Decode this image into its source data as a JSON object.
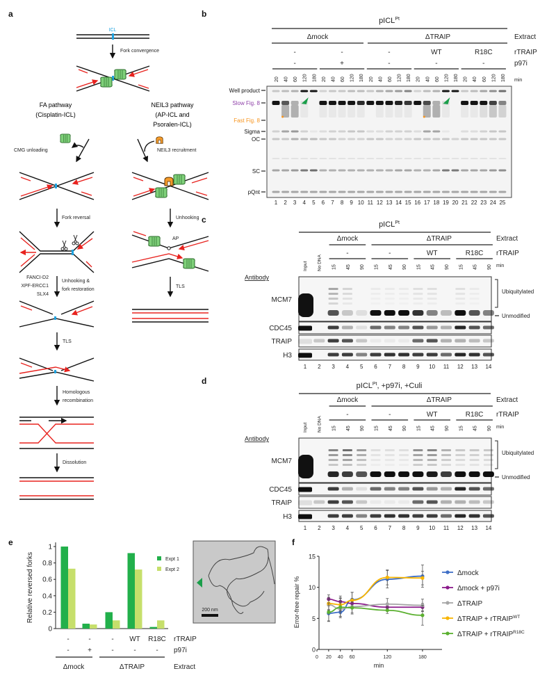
{
  "panel_labels": {
    "a": "a",
    "b": "b",
    "c": "c",
    "d": "d",
    "e": "e",
    "f": "f"
  },
  "panel_a": {
    "icl": "ICL",
    "fork_convergence": "Fork convergence",
    "fa_pathway": [
      "FA pathway",
      "(Cisplatin-ICL)"
    ],
    "neil3_pathway": [
      "NEIL3 pathway",
      "(AP-ICL and",
      "Psoralen-ICL)"
    ],
    "cmg_unloading": "CMG unloading",
    "neil3_recruitment": "NEIL3 recruitment",
    "fork_reversal": "Fork reversal",
    "unhooking": "Unhooking",
    "ap": "AP",
    "factors": [
      "FANCI-D2",
      "XPF-ERCC1",
      "SLX4"
    ],
    "unhooking_restoration": [
      "Unhooking &",
      "fork restoration"
    ],
    "tls": "TLS",
    "homologous_recombination": [
      "Homologous",
      "recombination"
    ],
    "dissolution": "Dissolution",
    "colors": {
      "dna": "#111111",
      "nascent": "#e8231f",
      "icl": "#1fa3e0",
      "cmg": "#7fd07a",
      "neil3": "#f59b2b"
    }
  },
  "panel_b": {
    "title": "pICL",
    "title_sup": "Pt",
    "extract_groups": [
      "Δmock",
      "ΔTRAIP"
    ],
    "row_labels": {
      "extract": "Extract",
      "rtraip": "rTRAIP",
      "p97i": "p97i",
      "min": "min"
    },
    "rtraip": [
      "-",
      "-",
      "-",
      "WT",
      "R18C"
    ],
    "p97i": [
      "-",
      "+",
      "-",
      "-",
      "-"
    ],
    "minutes": [
      "20",
      "40",
      "60",
      "120",
      "180"
    ],
    "lane_numbers": [
      "1",
      "2",
      "3",
      "4",
      "5",
      "6",
      "7",
      "8",
      "9",
      "10",
      "11",
      "12",
      "13",
      "14",
      "15",
      "16",
      "17",
      "18",
      "19",
      "20",
      "21",
      "22",
      "23",
      "24",
      "25"
    ],
    "band_labels": [
      {
        "text": "Well product",
        "color": "#111111"
      },
      {
        "text": "Slow Fig. 8",
        "color": "#8e3fa8"
      },
      {
        "text": "Fast Fig. 8",
        "color": "#f7941d"
      },
      {
        "text": "Sigma",
        "color": "#111111"
      },
      {
        "text": "OC",
        "color": "#111111"
      },
      {
        "text": "SC",
        "color": "#111111"
      },
      {
        "text": "pQnt",
        "color": "#111111"
      }
    ],
    "arrowhead_color": "#1a9e4a"
  },
  "panel_c": {
    "title": "pICL",
    "title_sup": "Pt",
    "title_rest": "",
    "extract_groups": [
      "Δmock",
      "ΔTRAIP"
    ],
    "row_labels": {
      "extract": "Extract",
      "rtraip": "rTRAIP",
      "min": "min"
    },
    "rtraip": [
      "-",
      "-",
      "WT",
      "R18C"
    ],
    "lane_heads": [
      "Input",
      "No DNA"
    ],
    "minutes": [
      "15",
      "45",
      "90"
    ],
    "antibody": "Antibody",
    "blots": [
      "MCM7",
      "CDC45",
      "TRAIP",
      "H3"
    ],
    "ubiquitylated": "Ubiquitylated",
    "unmodified": "Unmodified",
    "lane_numbers": [
      "1",
      "2",
      "3",
      "4",
      "5",
      "6",
      "7",
      "8",
      "9",
      "10",
      "11",
      "12",
      "13",
      "14"
    ]
  },
  "panel_d": {
    "title": "pICL",
    "title_sup": "Pt",
    "title_rest": ", +p97i, +Culi",
    "extract_groups": [
      "Δmock",
      "ΔTRAIP"
    ],
    "row_labels": {
      "extract": "Extract",
      "rtraip": "rTRAIP",
      "min": "min"
    },
    "rtraip": [
      "-",
      "-",
      "WT",
      "R18C"
    ],
    "lane_heads": [
      "Input",
      "No DNA"
    ],
    "minutes": [
      "15",
      "45",
      "90"
    ],
    "antibody": "Antibody",
    "blots": [
      "MCM7",
      "CDC45",
      "TRAIP",
      "H3"
    ],
    "ubiquitylated": "Ubiquitylated",
    "unmodified": "Unmodified",
    "lane_numbers": [
      "1",
      "2",
      "3",
      "4",
      "5",
      "6",
      "7",
      "8",
      "9",
      "10",
      "11",
      "12",
      "13",
      "14"
    ]
  },
  "panel_e_image": {
    "scale_bar": "200 nm",
    "arrowhead_color": "#1a9e4a"
  },
  "chart_data": [
    {
      "type": "bar",
      "ylabel": "Relative reversed forks",
      "ylim": [
        0,
        1
      ],
      "yticks": [
        "0",
        "0.2",
        "0.4",
        "0.6",
        "0.8",
        "1"
      ],
      "categories": [
        "1",
        "2",
        "3",
        "4",
        "5"
      ],
      "series": [
        {
          "name": "Expt 1",
          "color": "#22b04b",
          "values": [
            1.0,
            0.06,
            0.2,
            0.92,
            0.02
          ]
        },
        {
          "name": "Expt 2",
          "color": "#c6df6b",
          "values": [
            0.73,
            0.05,
            0.1,
            0.72,
            0.1
          ]
        }
      ],
      "row_labels": {
        "rtraip": "rTRAIP",
        "p97i": "p97i",
        "extract": "Extract"
      },
      "rtraip": [
        "-",
        "-",
        "-",
        "WT",
        "R18C"
      ],
      "p97i": [
        "-",
        "+",
        "-",
        "-",
        "-"
      ],
      "extract_groups": [
        "Δmock",
        "ΔTRAIP"
      ],
      "legend": "right",
      "grid": false
    },
    {
      "type": "line",
      "ylabel": "Error-free repair %",
      "xlabel": "min",
      "ylim": [
        0,
        15
      ],
      "xlim": [
        0,
        210
      ],
      "yticks": [
        "0",
        "5",
        "10",
        "15"
      ],
      "xticks": [
        "0",
        "20",
        "40",
        "60",
        "120",
        "180"
      ],
      "x": [
        20,
        40,
        60,
        120,
        180
      ],
      "series": [
        {
          "name": "Δmock",
          "sup": "",
          "color": "#3f6fc6",
          "values": [
            5.8,
            6.0,
            8.0,
            11.3,
            11.8
          ],
          "errors": [
            1.2,
            0.9,
            1.2,
            1.4,
            1.8
          ]
        },
        {
          "name": "Δmock + p97i",
          "sup": "",
          "color": "#8b1a8b",
          "values": [
            8.1,
            7.7,
            7.4,
            6.8,
            6.8
          ],
          "errors": [
            0.7,
            0.9,
            0.8,
            0.5,
            0.6
          ]
        },
        {
          "name": "ΔTRAIP",
          "sup": "",
          "color": "#a6a6a6",
          "values": [
            7.2,
            6.5,
            6.9,
            7.3,
            7.1
          ],
          "errors": [
            0.9,
            1.2,
            1.0,
            0.9,
            1.0
          ]
        },
        {
          "name": "ΔTRAIP + rTRAIP",
          "sup": "WT",
          "color": "#f8b500",
          "values": [
            7.4,
            7.2,
            7.9,
            11.6,
            11.5
          ],
          "errors": [
            1.0,
            1.0,
            1.3,
            1.2,
            1.1
          ]
        },
        {
          "name": "ΔTRAIP + rTRAIP",
          "sup": "R18C",
          "color": "#5bb030",
          "values": [
            6.0,
            6.8,
            6.7,
            6.3,
            5.5
          ],
          "errors": [
            1.5,
            1.5,
            1.0,
            0.5,
            1.6
          ]
        }
      ],
      "legend": "right",
      "grid": false
    }
  ]
}
